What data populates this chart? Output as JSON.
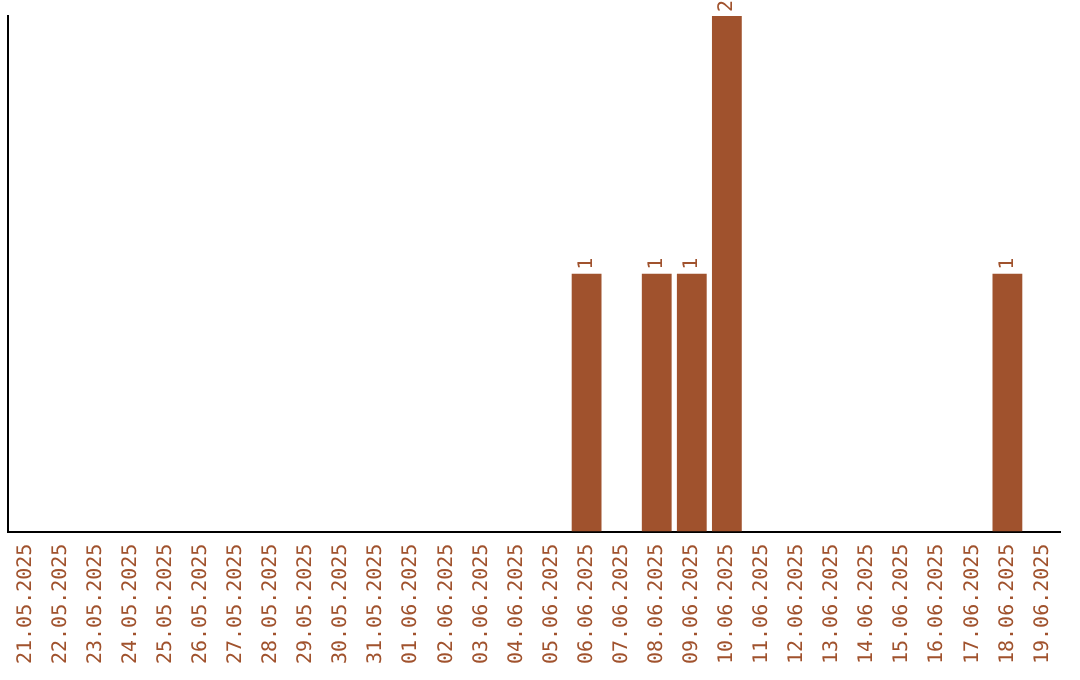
{
  "chart_data": {
    "type": "bar",
    "categories": [
      "21.05.2025",
      "22.05.2025",
      "23.05.2025",
      "24.05.2025",
      "25.05.2025",
      "26.05.2025",
      "27.05.2025",
      "28.05.2025",
      "29.05.2025",
      "30.05.2025",
      "31.05.2025",
      "01.06.2025",
      "02.06.2025",
      "03.06.2025",
      "04.06.2025",
      "05.06.2025",
      "06.06.2025",
      "07.06.2025",
      "08.06.2025",
      "09.06.2025",
      "10.06.2025",
      "11.06.2025",
      "12.06.2025",
      "13.06.2025",
      "14.06.2025",
      "15.06.2025",
      "16.06.2025",
      "17.06.2025",
      "18.06.2025",
      "19.06.2025"
    ],
    "values": [
      null,
      null,
      null,
      null,
      null,
      null,
      null,
      null,
      null,
      null,
      null,
      null,
      null,
      null,
      null,
      null,
      1,
      null,
      1,
      1,
      2,
      null,
      null,
      null,
      null,
      null,
      null,
      null,
      1,
      null
    ],
    "data_labels": true,
    "color": "#a0522d",
    "tick_labels": "x",
    "grid": false,
    "legend": false
  }
}
